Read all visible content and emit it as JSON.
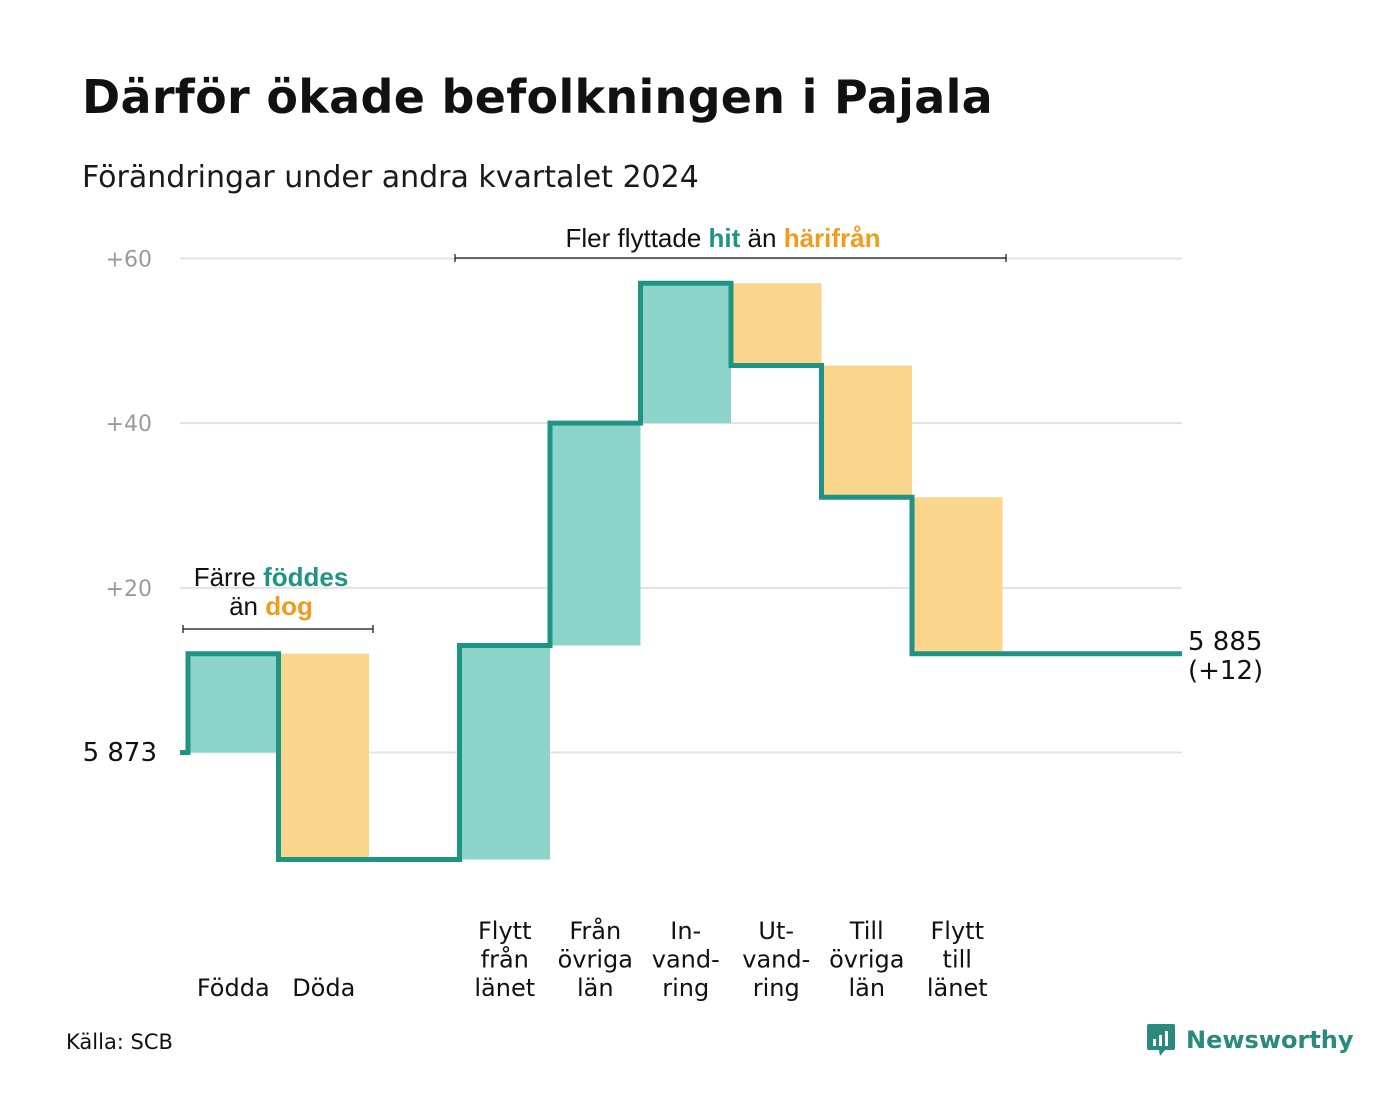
{
  "title": "Därför ökade befolkningen i Pajala",
  "subtitle": "Förändringar under andra kvartalet 2024",
  "source": "Källa: SCB",
  "brand": "Newsworthy",
  "colors": {
    "increase": "#8dd5cb",
    "decrease": "#fad58c",
    "line": "#1f9484",
    "teal_text": "#1f9484",
    "orange_text": "#f29c1c",
    "grid": "#e3e3e3"
  },
  "annotations": {
    "left": {
      "l1_a": "Färre",
      "l1_b": "föddes",
      "l2_a": "än",
      "l2_b": "dog"
    },
    "top": {
      "a": "Fler flyttade",
      "b": "hit",
      "c": "än",
      "d": "härifrån"
    }
  },
  "chart_data": {
    "type": "waterfall",
    "title": "Därför ökade befolkningen i Pajala",
    "subtitle": "Förändringar under andra kvartalet 2024",
    "start_label": "5  873",
    "start_value": 5873,
    "end_label_1": "5 885",
    "end_label_2": "(+12)",
    "end_value": 5885,
    "yticks": [
      {
        "value": 20,
        "label": "+20"
      },
      {
        "value": 40,
        "label": "+40"
      },
      {
        "value": 60,
        "label": "+60"
      }
    ],
    "ylim": [
      -13,
      60
    ],
    "steps": [
      {
        "label_lines": [
          "Födda"
        ],
        "value": 12
      },
      {
        "label_lines": [
          "Döda"
        ],
        "value": -25
      },
      {
        "label_lines": [],
        "value": 0
      },
      {
        "label_lines": [
          "Flytt",
          "från",
          "länet"
        ],
        "value": 26
      },
      {
        "label_lines": [
          "Från",
          "övriga",
          "län"
        ],
        "value": 27
      },
      {
        "label_lines": [
          "In-",
          "vand-",
          "ring"
        ],
        "value": 17
      },
      {
        "label_lines": [
          "Ut-",
          "vand-",
          "ring"
        ],
        "value": -10
      },
      {
        "label_lines": [
          "Till",
          "övriga",
          "län"
        ],
        "value": -16
      },
      {
        "label_lines": [
          "Flytt",
          "till",
          "länet"
        ],
        "value": -19
      }
    ]
  }
}
